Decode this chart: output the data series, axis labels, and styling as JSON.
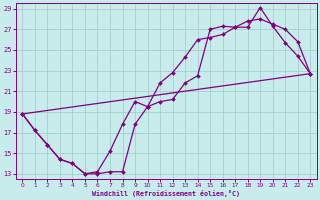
{
  "xlabel": "Windchill (Refroidissement éolien,°C)",
  "bg_color": "#c8ecec",
  "line_color": "#800080",
  "grid_color": "#a0c8c8",
  "xlim": [
    -0.5,
    23.5
  ],
  "ylim": [
    12.5,
    29.5
  ],
  "xticks": [
    0,
    1,
    2,
    3,
    4,
    5,
    6,
    7,
    8,
    9,
    10,
    11,
    12,
    13,
    14,
    15,
    16,
    17,
    18,
    19,
    20,
    21,
    22,
    23
  ],
  "yticks": [
    13,
    15,
    17,
    19,
    21,
    23,
    25,
    27,
    29
  ],
  "line1_x": [
    0,
    1,
    2,
    3,
    4,
    5,
    6,
    7,
    8,
    9,
    10,
    11,
    12,
    13,
    14,
    15,
    16,
    17,
    18,
    19,
    20,
    21,
    22,
    23
  ],
  "line1_y": [
    18.8,
    17.2,
    15.8,
    14.4,
    14.0,
    13.0,
    13.0,
    13.2,
    13.2,
    17.8,
    19.5,
    21.8,
    22.8,
    24.3,
    26.0,
    26.2,
    26.5,
    27.2,
    27.2,
    29.1,
    27.3,
    25.7,
    24.4,
    22.7
  ],
  "line2_x": [
    0,
    1,
    2,
    3,
    4,
    5,
    6,
    7,
    8,
    9,
    10,
    11,
    12,
    13,
    14,
    15,
    16,
    17,
    18,
    19,
    20,
    21,
    22,
    23
  ],
  "line2_y": [
    18.8,
    17.2,
    15.8,
    14.4,
    14.0,
    13.0,
    13.2,
    15.2,
    17.8,
    20.0,
    19.5,
    20.0,
    20.2,
    21.8,
    22.5,
    27.0,
    27.3,
    27.2,
    27.8,
    28.0,
    27.5,
    27.0,
    25.8,
    22.7
  ],
  "line3_x": [
    0,
    23
  ],
  "line3_y": [
    18.8,
    22.7
  ]
}
